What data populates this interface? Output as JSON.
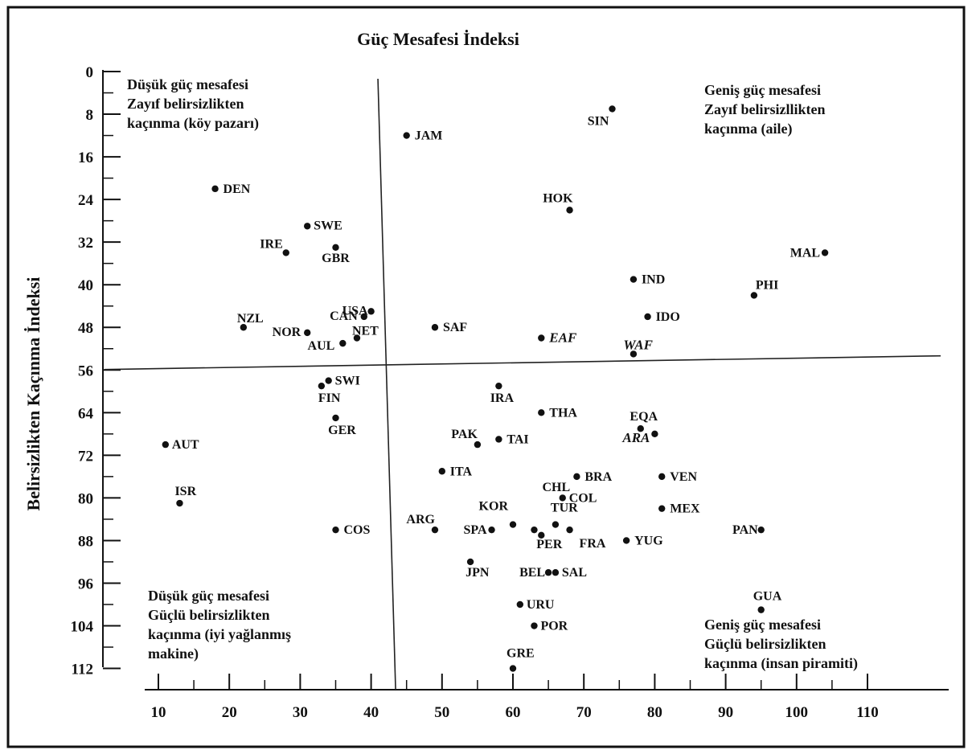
{
  "chart_data": {
    "type": "scatter",
    "title": "Güç Mesafesi İndeksi",
    "xlabel": "",
    "ylabel": "Belirsizlikten Kaçınma İndeksi",
    "xlim": [
      10,
      120
    ],
    "ylim": [
      0,
      112
    ],
    "y_inverted": true,
    "xticks": [
      10,
      20,
      30,
      40,
      50,
      60,
      70,
      80,
      90,
      100,
      110
    ],
    "yticks": [
      0,
      8,
      16,
      24,
      32,
      40,
      48,
      56,
      64,
      72,
      80,
      88,
      96,
      104,
      112
    ],
    "grid": false,
    "dividers": {
      "x": 43,
      "y": 55
    },
    "quadrants": [
      {
        "id": "top-left",
        "lines": [
          "Düşük güç mesafesi",
          "Zayıf belirsizlikten",
          "kaçınma (köy pazarı)"
        ]
      },
      {
        "id": "top-right",
        "lines": [
          "Geniş güç mesafesi",
          "Zayıf belirsizllikten",
          "kaçınma (aile)"
        ]
      },
      {
        "id": "bottom-left",
        "lines": [
          "Düşük güç mesafesi",
          "Güçlü belirsizlikten",
          "kaçınma (iyi yağlanmış",
          "makine)"
        ]
      },
      {
        "id": "bottom-right",
        "lines": [
          "Geniş güç mesafesi",
          "Güçlü belirsizlikten",
          "kaçınma (insan piramiti)"
        ]
      }
    ],
    "points": [
      {
        "label": "SIN",
        "x": 74,
        "y": 7
      },
      {
        "label": "JAM",
        "x": 45,
        "y": 12
      },
      {
        "label": "DEN",
        "x": 18,
        "y": 22
      },
      {
        "label": "HOK",
        "x": 68,
        "y": 26
      },
      {
        "label": "SWE",
        "x": 31,
        "y": 29
      },
      {
        "label": "IRE",
        "x": 28,
        "y": 34
      },
      {
        "label": "GBR",
        "x": 35,
        "y": 33
      },
      {
        "label": "MAL",
        "x": 104,
        "y": 34
      },
      {
        "label": "IND",
        "x": 77,
        "y": 39
      },
      {
        "label": "PHI",
        "x": 94,
        "y": 42
      },
      {
        "label": "USA",
        "x": 40,
        "y": 45
      },
      {
        "label": "IDO",
        "x": 79,
        "y": 46
      },
      {
        "label": "CAN",
        "x": 39,
        "y": 46
      },
      {
        "label": "NZL",
        "x": 22,
        "y": 48
      },
      {
        "label": "SAF",
        "x": 49,
        "y": 48
      },
      {
        "label": "NOR",
        "x": 31,
        "y": 49
      },
      {
        "label": "NET",
        "x": 38,
        "y": 50
      },
      {
        "label": "EAF",
        "x": 64,
        "y": 50,
        "italic": true
      },
      {
        "label": "AUL",
        "x": 36,
        "y": 51
      },
      {
        "label": "WAF",
        "x": 77,
        "y": 53,
        "italic": true
      },
      {
        "label": "SWI",
        "x": 34,
        "y": 58
      },
      {
        "label": "FIN",
        "x": 33,
        "y": 59
      },
      {
        "label": "IRA",
        "x": 58,
        "y": 59
      },
      {
        "label": "THA",
        "x": 64,
        "y": 64
      },
      {
        "label": "GER",
        "x": 35,
        "y": 65
      },
      {
        "label": "EQA",
        "x": 78,
        "y": 67
      },
      {
        "label": "ARA",
        "x": 80,
        "y": 68,
        "italic": true
      },
      {
        "label": "PAK",
        "x": 55,
        "y": 70
      },
      {
        "label": "TAI",
        "x": 58,
        "y": 69
      },
      {
        "label": "AUT",
        "x": 11,
        "y": 70
      },
      {
        "label": "ITA",
        "x": 50,
        "y": 75
      },
      {
        "label": "BRA",
        "x": 69,
        "y": 76
      },
      {
        "label": "VEN",
        "x": 81,
        "y": 76
      },
      {
        "label": "CHL",
        "x": 63,
        "y": 86
      },
      {
        "label": "COL",
        "x": 67,
        "y": 80
      },
      {
        "label": "ISR",
        "x": 13,
        "y": 81
      },
      {
        "label": "MEX",
        "x": 81,
        "y": 82
      },
      {
        "label": "KOR",
        "x": 60,
        "y": 85
      },
      {
        "label": "TUR",
        "x": 66,
        "y": 85
      },
      {
        "label": "ARG",
        "x": 49,
        "y": 86
      },
      {
        "label": "SPA",
        "x": 57,
        "y": 86
      },
      {
        "label": "PAN",
        "x": 95,
        "y": 86
      },
      {
        "label": "COS",
        "x": 35,
        "y": 86
      },
      {
        "label": "FRA",
        "x": 68,
        "y": 86
      },
      {
        "label": "YUG",
        "x": 76,
        "y": 88
      },
      {
        "label": "PER",
        "x": 64,
        "y": 87
      },
      {
        "label": "JPN",
        "x": 54,
        "y": 92
      },
      {
        "label": "BEL",
        "x": 65,
        "y": 94
      },
      {
        "label": "SAL",
        "x": 66,
        "y": 94
      },
      {
        "label": "GUA",
        "x": 95,
        "y": 101
      },
      {
        "label": "URU",
        "x": 61,
        "y": 100
      },
      {
        "label": "POR",
        "x": 63,
        "y": 104
      },
      {
        "label": "GRE",
        "x": 60,
        "y": 112
      }
    ]
  }
}
